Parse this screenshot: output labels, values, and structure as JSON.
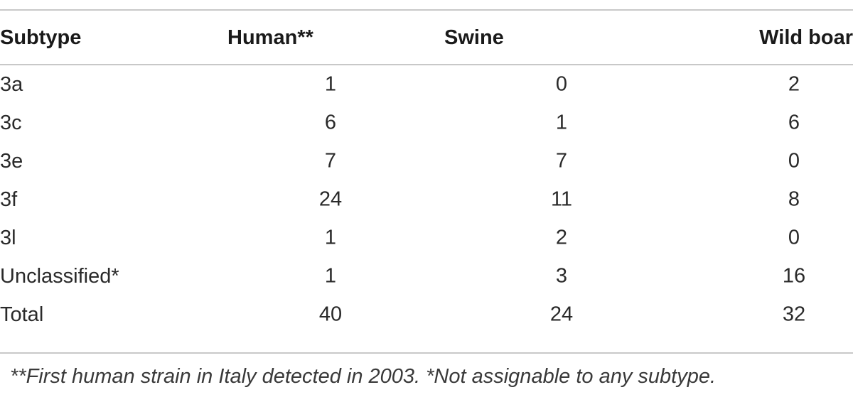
{
  "table": {
    "headers": {
      "subtype": "Subtype",
      "human": "Human**",
      "swine": "Swine",
      "wild_boar": "Wild boar"
    },
    "rows": [
      {
        "subtype": "3a",
        "human": "1",
        "swine": "0",
        "wild_boar": "2"
      },
      {
        "subtype": "3c",
        "human": "6",
        "swine": "1",
        "wild_boar": "6"
      },
      {
        "subtype": "3e",
        "human": "7",
        "swine": "7",
        "wild_boar": "0"
      },
      {
        "subtype": "3f",
        "human": "24",
        "swine": "11",
        "wild_boar": "8"
      },
      {
        "subtype": "3l",
        "human": "1",
        "swine": "2",
        "wild_boar": "0"
      },
      {
        "subtype": "Unclassified*",
        "human": "1",
        "swine": "3",
        "wild_boar": "16"
      },
      {
        "subtype": "Total",
        "human": "40",
        "swine": "24",
        "wild_boar": "32"
      }
    ]
  },
  "footnote": "**First human strain in Italy detected in 2003. *Not assignable to any subtype."
}
